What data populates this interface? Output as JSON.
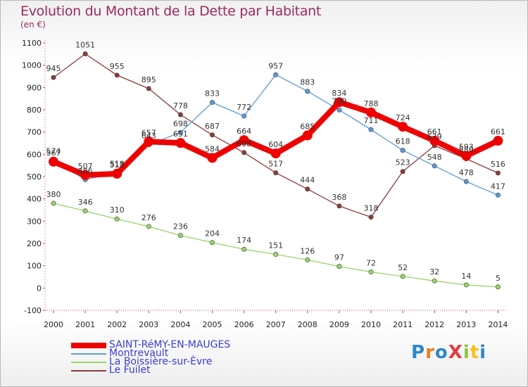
{
  "header": {
    "title": "Evolution du Montant de la Dette par Habitant",
    "unit": "(en €)"
  },
  "logo": {
    "text": "ProXiti",
    "colors": [
      "#2e86c8",
      "#f07b1e",
      "#2e86c8",
      "#e03b3b",
      "#8cc63f",
      "#f7c21c",
      "#2e86c8"
    ]
  },
  "chart_data": {
    "type": "line",
    "title": "Evolution du Montant de la Dette par Habitant",
    "subtitle": "(en €)",
    "x": [
      2000,
      2001,
      2002,
      2003,
      2004,
      2005,
      2006,
      2007,
      2008,
      2009,
      2010,
      2011,
      2012,
      2013,
      2014
    ],
    "ylim": [
      -100,
      1100
    ],
    "yticks": [
      -100,
      0,
      100,
      200,
      300,
      400,
      500,
      600,
      700,
      800,
      900,
      1000,
      1100
    ],
    "grid": false,
    "legend_position": "bottom-left",
    "series": [
      {
        "name": "SAINT-RéMY-EN-MAUGES",
        "color": "#ee0000",
        "width": "thick",
        "values": [
          567,
          507,
          513,
          657,
          651,
          584,
          664,
          604,
          685,
          834,
          788,
          724,
          661,
          593,
          661
        ],
        "labels": [
          "567",
          "507",
          "513",
          "657",
          "651",
          "584",
          "664",
          "604",
          "685",
          "834",
          "788",
          "724",
          "661",
          "593",
          "661"
        ]
      },
      {
        "name": "Montrevault",
        "color": "#5b9bd5",
        "width": "thin",
        "values": [
          574,
          486,
          518,
          643,
          698,
          833,
          772,
          957,
          883,
          799,
          711,
          618,
          548,
          478,
          417
        ],
        "labels": [
          "574",
          "486",
          "518",
          "643",
          "698",
          "833",
          "772",
          "957",
          "883",
          "799",
          "711",
          "618",
          "548",
          "478",
          "417"
        ]
      },
      {
        "name": "La Boissière-sur-Èvre",
        "color": "#99d36a",
        "width": "thin",
        "values": [
          380,
          346,
          310,
          276,
          236,
          204,
          174,
          151,
          126,
          97,
          72,
          52,
          32,
          14,
          5
        ],
        "labels": [
          "380",
          "346",
          "310",
          "276",
          "236",
          "204",
          "174",
          "151",
          "126",
          "97",
          "72",
          "52",
          "32",
          "14",
          "5"
        ]
      },
      {
        "name": "Le Fuilet",
        "color": "#8b3a3a",
        "width": "thin",
        "values": [
          945,
          1051,
          955,
          895,
          778,
          687,
          608,
          517,
          444,
          368,
          318,
          523,
          639,
          580,
          516
        ],
        "labels": [
          "945",
          "1051",
          "955",
          "895",
          "778",
          "687",
          "608",
          "517",
          "444",
          "368",
          "318",
          "523",
          "639",
          "580",
          "516"
        ]
      }
    ]
  }
}
